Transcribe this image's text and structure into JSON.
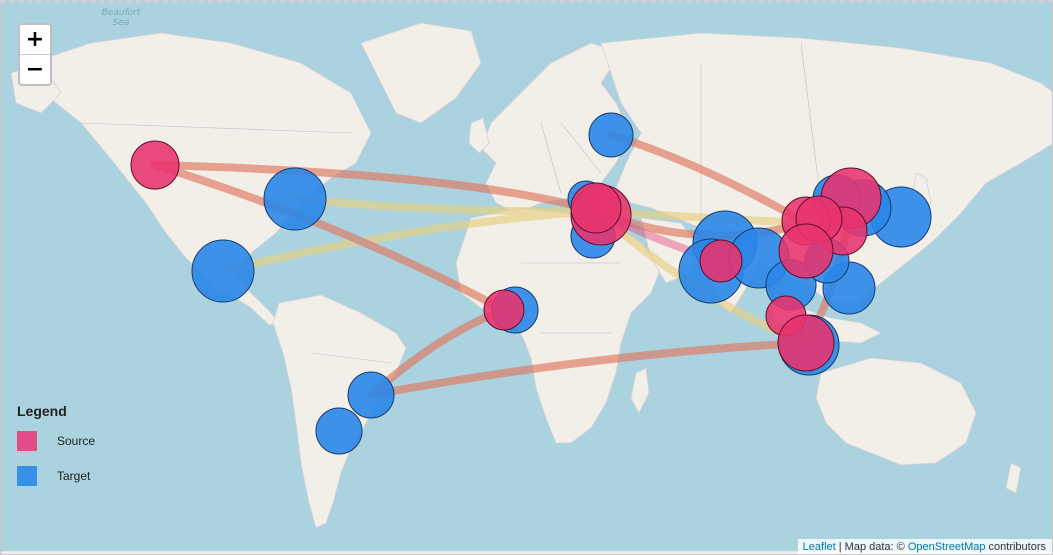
{
  "map": {
    "water_label": "Beaufort\nSea",
    "colors": {
      "water": "#aad3df",
      "land": "#f2efe9",
      "border": "#c9b8c9",
      "source": "#e8336d",
      "target": "#2a86e8",
      "route_red": "#e0785f",
      "route_yellow": "#e8d080"
    }
  },
  "zoom": {
    "in_label": "+",
    "out_label": "−"
  },
  "legend": {
    "title": "Legend",
    "items": [
      {
        "label": "Source",
        "color": "#e34d85"
      },
      {
        "label": "Target",
        "color": "#3791e8"
      }
    ]
  },
  "attribution": {
    "leaflet": "Leaflet",
    "separator": " | Map data: © ",
    "osm": "OpenStreetMap",
    "suffix": " contributors"
  }
}
